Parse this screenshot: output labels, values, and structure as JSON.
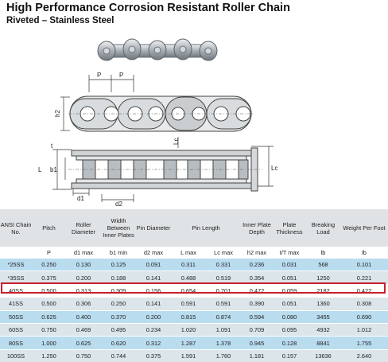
{
  "header": {
    "title": "High Performance Corrosion Resistant Roller Chain",
    "subtitle": "Riveted – Stainless Steel"
  },
  "drawing": {
    "labels": {
      "p1": "P",
      "p2": "P",
      "h2": "h2",
      "lc_top": "Lc",
      "lc_side": "Lc",
      "t": "t",
      "l": "L",
      "b1": "b1",
      "d1": "d1",
      "d2": "d2"
    }
  },
  "table": {
    "headers": [
      "ANSI Chain No.",
      "Pitch",
      "Roller Diameter",
      "Width Between Inner Plates",
      "Pin Diameter",
      "Pin Length",
      "Inner Plate Depth",
      "Plate Thickness",
      "Breaking Load",
      "Weight Per Foot"
    ],
    "units": [
      "",
      "P",
      "d1 max",
      "b1 min",
      "d2 max",
      "L max",
      "Lc max",
      "h2 max",
      "t/T max",
      "lb",
      "lb"
    ],
    "rows": [
      [
        "*25SS",
        "0.250",
        "0.130",
        "0.125",
        "0.091",
        "0.311",
        "0.331",
        "0.236",
        "0.031",
        "568",
        "0.101"
      ],
      [
        "*35SS",
        "0.375",
        "0.200",
        "0.188",
        "0.141",
        "0.488",
        "0.519",
        "0.354",
        "0.051",
        "1250",
        "0.221"
      ],
      [
        "40SS",
        "0.500",
        "0.313",
        "0.309",
        "0.156",
        "0.654",
        "0.701",
        "0.472",
        "0.059",
        "2182",
        "0.422"
      ],
      [
        "41SS",
        "0.500",
        "0.306",
        "0.250",
        "0.141",
        "0.591",
        "0.591",
        "0.390",
        "0.051",
        "1360",
        "0.308"
      ],
      [
        "50SS",
        "0.625",
        "0.400",
        "0.370",
        "0.200",
        "0.815",
        "0.874",
        "0.594",
        "0.080",
        "3455",
        "0.690"
      ],
      [
        "60SS",
        "0.750",
        "0.469",
        "0.495",
        "0.234",
        "1.020",
        "1.091",
        "0.709",
        "0.095",
        "4932",
        "1.012"
      ],
      [
        "80SS",
        "1.000",
        "0.625",
        "0.620",
        "0.312",
        "1.287",
        "1.378",
        "0.945",
        "0.128",
        "8841",
        "1.755"
      ],
      [
        "100SS",
        "1.250",
        "0.750",
        "0.744",
        "0.375",
        "1.591",
        "1.760",
        "1.181",
        "0.157",
        "13636",
        "2.640"
      ]
    ]
  },
  "colors": {
    "highlight": "#c8202c",
    "row_blue": "#b9dcef",
    "row_grey": "#dbe5ea",
    "header_bg": "#dfe3e6"
  }
}
